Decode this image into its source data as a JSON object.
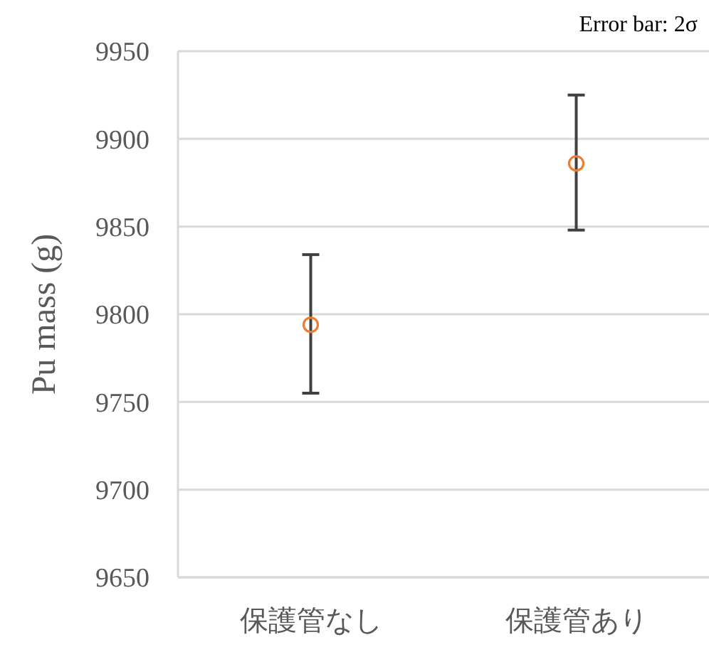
{
  "chart_data": {
    "type": "scatter",
    "ylabel": "Pu mass (g)",
    "annotations": [
      "Error bar: 2σ"
    ],
    "categories": [
      "保護管なし",
      "保護管あり"
    ],
    "series": [
      {
        "color": "#ed7d31",
        "values": [
          9794,
          9886
        ],
        "errors": [
          [
            9755,
            9834
          ],
          [
            9848,
            9925
          ]
        ]
      }
    ],
    "ylim": [
      9650,
      9950
    ],
    "yticks": [
      9650,
      9700,
      9750,
      9800,
      9850,
      9900,
      9950
    ],
    "grid": "y",
    "marker": "circle"
  }
}
